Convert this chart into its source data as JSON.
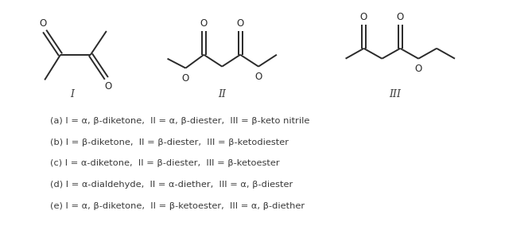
{
  "background_color": "#ffffff",
  "fig_width": 6.69,
  "fig_height": 2.89,
  "dpi": 100,
  "options": [
    "(a) I = α, β-diketone,  II = α, β-diester,  III = β-keto nitrile",
    "(b) I = β-diketone,  II = β-diester,  III = β-ketodiester",
    "(c) I = α-diketone,  II = β-diester,  III = β-ketoester",
    "(d) I = α-dialdehyde,  II = α-diether,  III = α, β-diester",
    "(e) I = α, β-diketone,  II = β-ketoester,  III = α, β-diether"
  ],
  "label_I": "I",
  "label_II": "II",
  "label_III": "III",
  "text_color": "#3a3a3a",
  "option_fontsize": 8.2,
  "label_fontsize": 9,
  "struct_color": "#2a2a2a",
  "struct_lw": 1.4
}
